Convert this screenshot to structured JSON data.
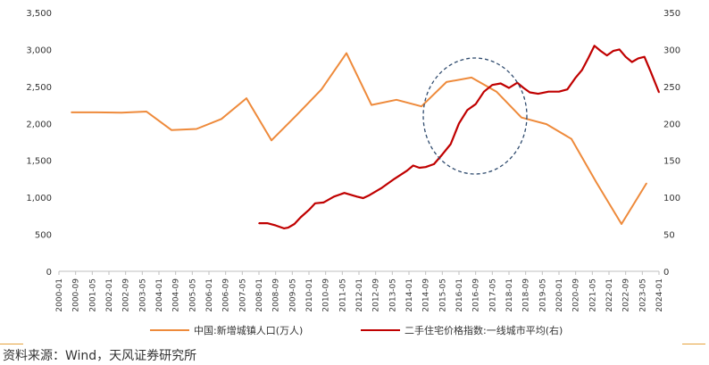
{
  "chart_data": {
    "type": "line",
    "title": "",
    "xlabel": "",
    "ylabel": "",
    "ylim_left": [
      0,
      3500
    ],
    "yticks_left": [
      "0",
      "500",
      "1,000",
      "1,500",
      "2,000",
      "2,500",
      "3,000",
      "3,500"
    ],
    "ylim_right": [
      0,
      350
    ],
    "yticks_right": [
      "0",
      "50",
      "100",
      "150",
      "200",
      "250",
      "300",
      "350"
    ],
    "x_ticks": [
      "2000-01",
      "2000-09",
      "2001-05",
      "2002-01",
      "2002-09",
      "2003-05",
      "2004-01",
      "2004-09",
      "2005-05",
      "2006-01",
      "2006-09",
      "2007-05",
      "2008-01",
      "2008-09",
      "2009-05",
      "2010-01",
      "2010-09",
      "2011-05",
      "2012-01",
      "2012-09",
      "2013-05",
      "2014-01",
      "2014-09",
      "2015-05",
      "2016-01",
      "2016-09",
      "2017-05",
      "2018-01",
      "2018-09",
      "2019-05",
      "2020-01",
      "2020-09",
      "2021-05",
      "2022-01",
      "2022-09",
      "2023-05",
      "2024-01"
    ],
    "grid": false,
    "legend_position": "bottom",
    "colors": {
      "series1": "#ee8a3b",
      "series2": "#c00000",
      "ellipse": "#2f4b6e",
      "axis": "#bfbfbf"
    },
    "series": [
      {
        "name": "中国:新增城镇人口(万人)",
        "axis": "left",
        "x": [
          "2000",
          "2001",
          "2002",
          "2003",
          "2004",
          "2005",
          "2006",
          "2007",
          "2008",
          "2009",
          "2010",
          "2011",
          "2012",
          "2013",
          "2014",
          "2015",
          "2016",
          "2017",
          "2018",
          "2019",
          "2020",
          "2021",
          "2022",
          "2023"
        ],
        "values": [
          2150,
          2150,
          2145,
          2160,
          1910,
          1925,
          2060,
          2340,
          1770,
          2110,
          2460,
          2950,
          2250,
          2320,
          2230,
          2560,
          2620,
          2430,
          2080,
          1990,
          1790,
          1200,
          640,
          1190
        ]
      },
      {
        "name": "二手住宅价格指数:一线城市平均(右)",
        "axis": "right",
        "x": [
          "2008-01",
          "2008-05",
          "2008-09",
          "2009-01",
          "2009-03",
          "2009-06",
          "2009-09",
          "2010-01",
          "2010-04",
          "2010-08",
          "2011-01",
          "2011-06",
          "2011-12",
          "2012-03",
          "2012-06",
          "2012-12",
          "2013-06",
          "2013-12",
          "2014-03",
          "2014-06",
          "2014-09",
          "2015-01",
          "2015-05",
          "2015-09",
          "2016-01",
          "2016-05",
          "2016-09",
          "2017-01",
          "2017-05",
          "2017-09",
          "2018-01",
          "2018-05",
          "2018-08",
          "2018-11",
          "2019-03",
          "2019-08",
          "2020-01",
          "2020-05",
          "2020-09",
          "2020-12",
          "2021-03",
          "2021-06",
          "2021-09",
          "2021-12",
          "2022-03",
          "2022-06",
          "2022-09",
          "2022-12",
          "2023-03",
          "2023-06",
          "2023-09",
          "2024-01"
        ],
        "values": [
          65,
          65,
          62,
          58,
          59,
          64,
          73,
          83,
          92,
          93,
          101,
          106,
          101,
          99,
          103,
          113,
          125,
          136,
          143,
          140,
          141,
          145,
          158,
          172,
          200,
          218,
          226,
          243,
          252,
          254,
          248,
          255,
          248,
          242,
          240,
          243,
          243,
          246,
          262,
          272,
          288,
          305,
          298,
          292,
          298,
          300,
          290,
          283,
          288,
          290,
          270,
          242
        ]
      }
    ]
  },
  "source": "资料来源：Wind，天风证券研究所"
}
